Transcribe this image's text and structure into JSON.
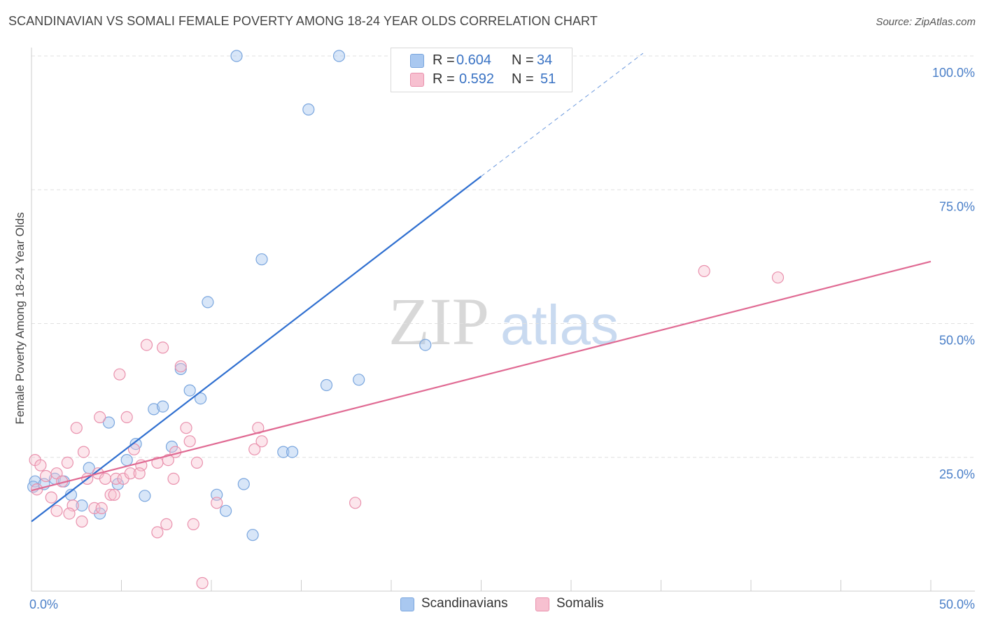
{
  "title": "SCANDINAVIAN VS SOMALI FEMALE POVERTY AMONG 18-24 YEAR OLDS CORRELATION CHART",
  "source": "Source: ZipAtlas.com",
  "watermark": {
    "zip": "ZIP",
    "atlas": "atlas"
  },
  "legend": {
    "r_label": "R =",
    "n_label": "N =",
    "rows": [
      {
        "name": "Scandinavians",
        "r": "0.604",
        "n": "34",
        "color": "#a9c8f0",
        "edge": "#7aa6de"
      },
      {
        "name": "Somalis",
        "r": "0.592",
        "n": "51",
        "color": "#f7c0d0",
        "edge": "#e991ad"
      }
    ]
  },
  "chart_data": {
    "type": "scatter",
    "xlabel": "",
    "ylabel": "Female Poverty Among 18-24 Year Olds",
    "xlim": [
      0,
      50
    ],
    "ylim": [
      0,
      100
    ],
    "x_tick_labels": [
      "0.0%",
      "50.0%"
    ],
    "y_tick_labels": [
      "25.0%",
      "50.0%",
      "75.0%",
      "100.0%"
    ],
    "y_ticks": [
      25,
      50,
      75,
      100
    ],
    "series": [
      {
        "name": "Scandinavians",
        "color": "#7aa6de",
        "fill": "rgba(169,200,240,0.45)",
        "line_color": "#2f6fd0",
        "trend": {
          "x0": 0,
          "y0": 13.0,
          "x1": 25,
          "y1": 77.5,
          "dash_to_x": 34,
          "dash_to_y": 100.5
        },
        "points": [
          [
            0.2,
            20.5
          ],
          [
            0.7,
            20.0
          ],
          [
            1.3,
            21.0
          ],
          [
            1.8,
            20.5
          ],
          [
            2.2,
            18.0
          ],
          [
            2.8,
            16.0
          ],
          [
            3.2,
            23.0
          ],
          [
            3.8,
            14.5
          ],
          [
            4.3,
            31.5
          ],
          [
            4.8,
            20.0
          ],
          [
            5.3,
            24.5
          ],
          [
            5.8,
            27.5
          ],
          [
            6.3,
            17.8
          ],
          [
            6.8,
            34.0
          ],
          [
            7.3,
            34.5
          ],
          [
            7.8,
            27.0
          ],
          [
            8.3,
            41.5
          ],
          [
            8.8,
            37.5
          ],
          [
            9.4,
            36.0
          ],
          [
            9.8,
            54.0
          ],
          [
            10.3,
            18.0
          ],
          [
            10.8,
            15.0
          ],
          [
            11.8,
            20.0
          ],
          [
            12.3,
            10.5
          ],
          [
            12.8,
            62.0
          ],
          [
            14.0,
            26.0
          ],
          [
            14.5,
            26.0
          ],
          [
            11.4,
            100.0
          ],
          [
            17.1,
            100.0
          ],
          [
            15.4,
            90.0
          ],
          [
            16.4,
            38.5
          ],
          [
            18.2,
            39.5
          ],
          [
            21.9,
            46.0
          ],
          [
            0.1,
            19.5
          ]
        ]
      },
      {
        "name": "Somalis",
        "color": "#e991ad",
        "fill": "rgba(247,192,208,0.40)",
        "line_color": "#e06a93",
        "trend": {
          "x0": 0,
          "y0": 18.8,
          "x1": 50,
          "y1": 61.6
        },
        "points": [
          [
            0.2,
            24.5
          ],
          [
            0.5,
            23.5
          ],
          [
            0.8,
            21.5
          ],
          [
            1.1,
            17.5
          ],
          [
            1.4,
            22.0
          ],
          [
            1.7,
            20.5
          ],
          [
            2.0,
            24.0
          ],
          [
            2.3,
            16.0
          ],
          [
            2.5,
            30.5
          ],
          [
            2.9,
            26.0
          ],
          [
            3.1,
            21.0
          ],
          [
            3.5,
            15.5
          ],
          [
            3.7,
            22.0
          ],
          [
            3.8,
            32.5
          ],
          [
            4.1,
            21.0
          ],
          [
            4.4,
            18.0
          ],
          [
            4.7,
            21.0
          ],
          [
            4.9,
            40.5
          ],
          [
            5.1,
            21.0
          ],
          [
            5.3,
            32.5
          ],
          [
            5.5,
            22.0
          ],
          [
            5.7,
            26.5
          ],
          [
            6.1,
            23.5
          ],
          [
            6.4,
            46.0
          ],
          [
            7.0,
            24.0
          ],
          [
            7.3,
            45.5
          ],
          [
            7.6,
            24.5
          ],
          [
            7.9,
            21.0
          ],
          [
            8.3,
            42.0
          ],
          [
            8.6,
            30.5
          ],
          [
            8.8,
            28.0
          ],
          [
            9.2,
            24.0
          ],
          [
            10.3,
            16.5
          ],
          [
            12.4,
            26.5
          ],
          [
            12.6,
            30.5
          ],
          [
            12.8,
            28.0
          ],
          [
            18.0,
            16.5
          ],
          [
            37.4,
            59.8
          ],
          [
            41.5,
            58.6
          ],
          [
            9.5,
            1.5
          ],
          [
            7.5,
            12.5
          ],
          [
            9.0,
            12.5
          ],
          [
            7.0,
            11.0
          ],
          [
            1.4,
            15.0
          ],
          [
            2.1,
            14.5
          ],
          [
            2.8,
            13.0
          ],
          [
            3.9,
            15.5
          ],
          [
            4.6,
            18.0
          ],
          [
            6.0,
            22.0
          ],
          [
            8.0,
            26.0
          ],
          [
            0.3,
            19.0
          ]
        ]
      }
    ]
  }
}
